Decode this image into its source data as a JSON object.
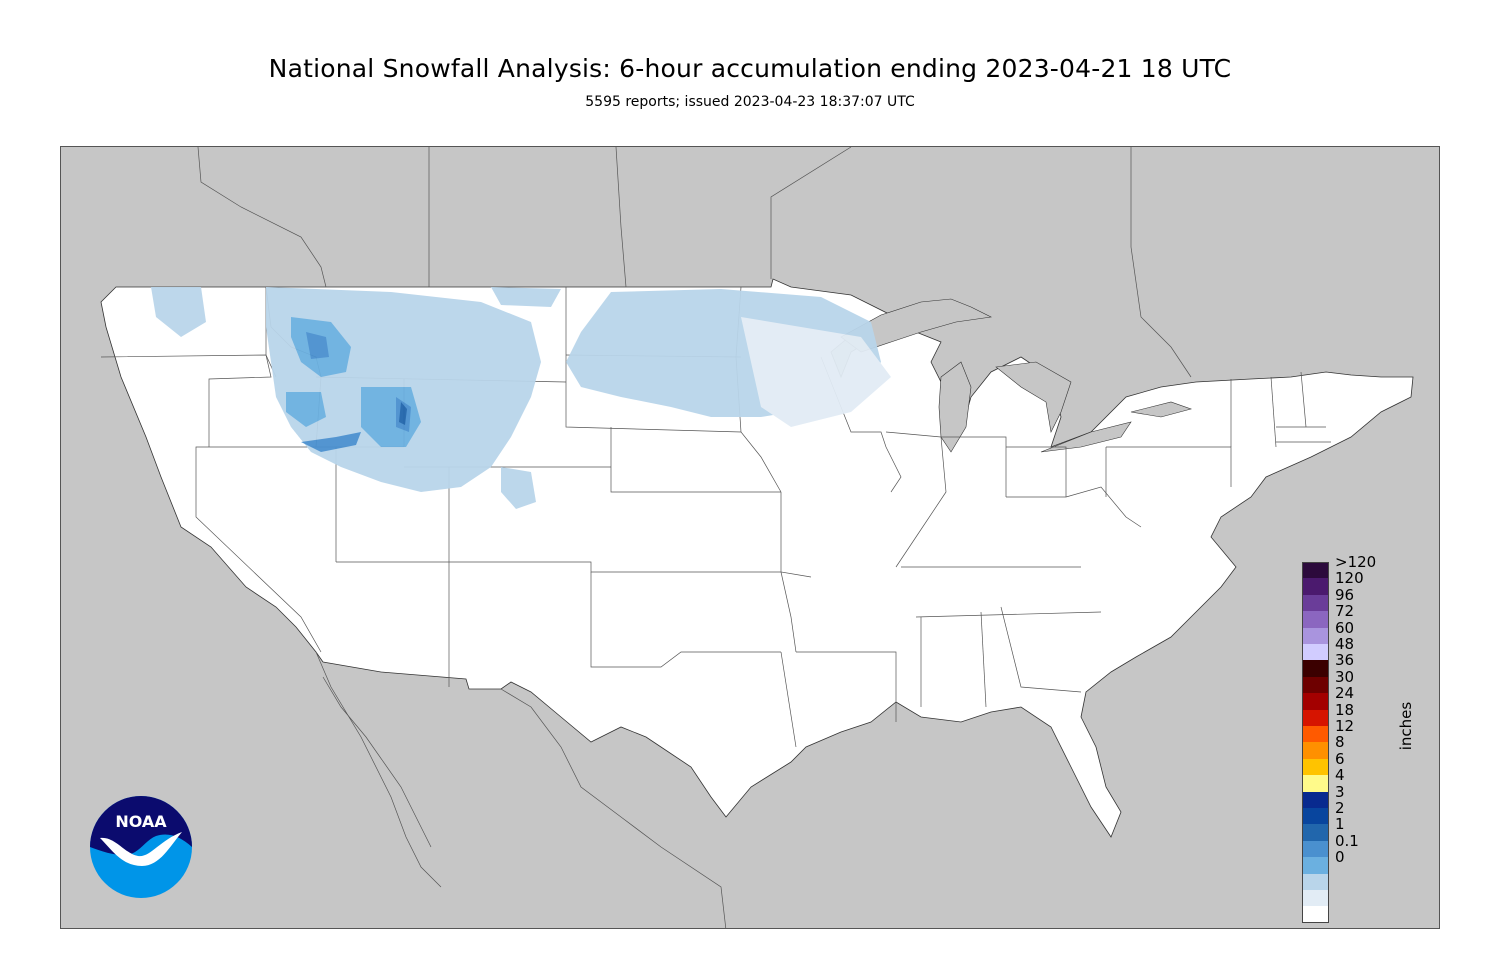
{
  "header": {
    "title": "National Snowfall Analysis: 6-hour accumulation ending 2023-04-21 18 UTC",
    "subtitle": "5595 reports; issued 2023-04-23 18:37:07 UTC"
  },
  "colors": {
    "land_outside": "#c6c6c6",
    "water": "#c6c6c6",
    "conus": "#ffffff",
    "border_line": "#444444"
  },
  "logo": {
    "text": "NOAA",
    "primary": "#0b0b6e",
    "secondary": "#0095e8"
  },
  "legend": {
    "unit": "inches",
    "bins": [
      {
        "label": ">120",
        "color": "#2c0a3c"
      },
      {
        "label": "120",
        "color": "#4b1a6e"
      },
      {
        "label": "96",
        "color": "#6a3d99"
      },
      {
        "label": "72",
        "color": "#8b66c0"
      },
      {
        "label": "60",
        "color": "#a994de"
      },
      {
        "label": "48",
        "color": "#d1ccff"
      },
      {
        "label": "36",
        "color": "#3b0000"
      },
      {
        "label": "30",
        "color": "#6e0000"
      },
      {
        "label": "24",
        "color": "#a30000"
      },
      {
        "label": "18",
        "color": "#d61400"
      },
      {
        "label": "12",
        "color": "#ff5a00"
      },
      {
        "label": "8",
        "color": "#ff9000"
      },
      {
        "label": "6",
        "color": "#ffc300"
      },
      {
        "label": "4",
        "color": "#fffa8a"
      },
      {
        "label": "3",
        "color": "#082a8f"
      },
      {
        "label": "2",
        "color": "#08459e"
      },
      {
        "label": "1",
        "color": "#2166ac"
      },
      {
        "label": "0.1",
        "color": "#4a90cf"
      },
      {
        "label": "0",
        "color": "#6bb0e0"
      }
    ],
    "extra_bins": [
      {
        "color": "#b9d5ea"
      },
      {
        "color": "#e2ecf5"
      },
      {
        "color": "#ffffff"
      }
    ]
  }
}
